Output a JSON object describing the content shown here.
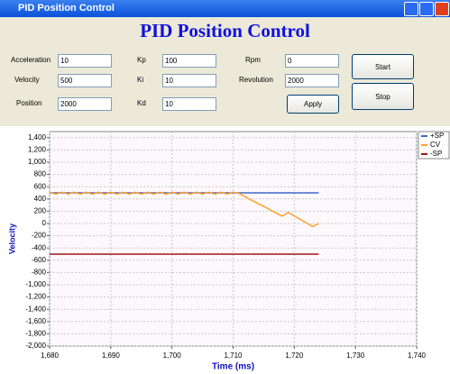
{
  "window": {
    "title": "PID Position Control"
  },
  "header": {
    "title": "PID Position Control"
  },
  "form": {
    "fields": [
      {
        "label": "Acceleration",
        "value": 10
      },
      {
        "label": "Velocity",
        "value": 500
      },
      {
        "label": "Position",
        "value": 2000
      },
      {
        "label": "Kp",
        "value": 100
      },
      {
        "label": "Ki",
        "value": 10
      },
      {
        "label": "Kd",
        "value": 10
      },
      {
        "label": "Rpm",
        "value": 0
      },
      {
        "label": "Revolution",
        "value": 2000
      }
    ],
    "buttons": [
      "Start",
      "Stop",
      "Apply"
    ]
  },
  "chart_data": {
    "type": "line",
    "xlabel": "Time (ms)",
    "ylabel": "Velocity",
    "xlim": [
      1680,
      1740
    ],
    "xticks": [
      {
        "value": 1680,
        "label": "1,680"
      },
      {
        "value": 1690,
        "label": "1,690"
      },
      {
        "value": 1700,
        "label": "1,700"
      },
      {
        "value": 1710,
        "label": "1,710"
      },
      {
        "value": 1720,
        "label": "1,720"
      },
      {
        "value": 1730,
        "label": "1,730"
      },
      {
        "value": 1740,
        "label": "1,740"
      }
    ],
    "ylim": [
      -2000,
      1500
    ],
    "yticks": [
      {
        "value": 1400,
        "label": "1,400"
      },
      {
        "value": 1200,
        "label": "1,200"
      },
      {
        "value": 1000,
        "label": "1,000"
      },
      800,
      600,
      400,
      200,
      0,
      -200,
      -400,
      -600,
      -800,
      {
        "value": -1000,
        "label": "-1,000"
      },
      {
        "value": -1200,
        "label": "-1,200"
      },
      {
        "value": -1400,
        "label": "-1,400"
      },
      {
        "value": -1600,
        "label": "-1,600"
      },
      {
        "value": -1800,
        "label": "-1,800"
      },
      {
        "value": -2000,
        "label": "-2,000"
      }
    ],
    "grid": true,
    "legend": "top-right",
    "series": [
      {
        "name": "+SP",
        "color": "#4169c8",
        "x": [
          1680,
          1724
        ],
        "values": [
          500,
          500
        ]
      },
      {
        "name": "CV",
        "color": "#ffa030",
        "x": [
          1680,
          1681,
          1682,
          1683,
          1684,
          1685,
          1686,
          1687,
          1688,
          1689,
          1690,
          1691,
          1692,
          1693,
          1694,
          1695,
          1696,
          1697,
          1698,
          1699,
          1700,
          1701,
          1702,
          1703,
          1704,
          1705,
          1706,
          1707,
          1708,
          1709,
          1710,
          1711,
          1713,
          1715,
          1718,
          1719,
          1723,
          1724
        ],
        "values": [
          510,
          480,
          510,
          480,
          510,
          480,
          510,
          480,
          510,
          480,
          510,
          480,
          510,
          480,
          510,
          480,
          510,
          480,
          510,
          480,
          510,
          480,
          510,
          480,
          510,
          480,
          510,
          480,
          510,
          480,
          510,
          490,
          380,
          280,
          120,
          180,
          -50,
          0
        ]
      },
      {
        "name": "-SP",
        "color": "#a01818",
        "x": [
          1680,
          1724
        ],
        "values": [
          -500,
          -500
        ]
      }
    ]
  }
}
